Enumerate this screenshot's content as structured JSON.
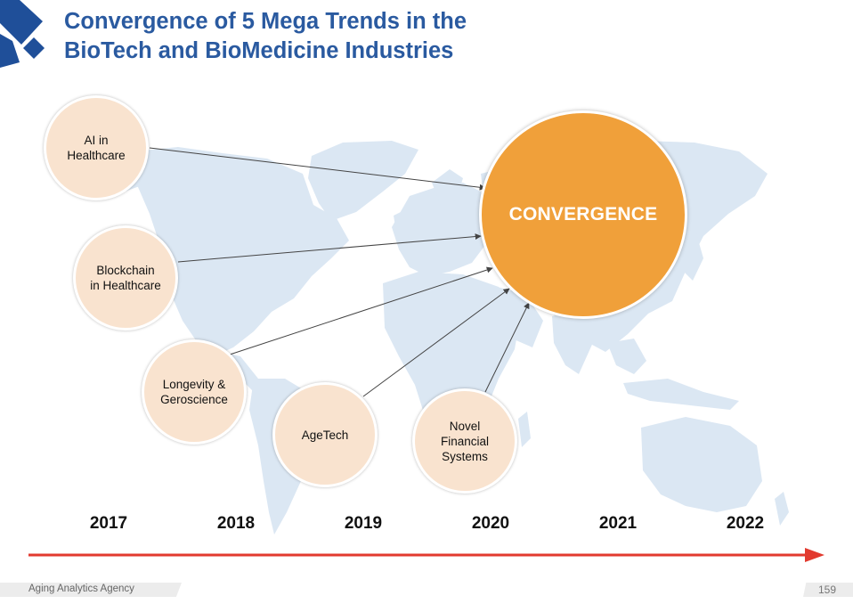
{
  "title": {
    "line1": "Convergence of 5 Mega Trends in the",
    "line2": "BioTech and BioMedicine Industries"
  },
  "trends": [
    {
      "label": "AI in\nHealthcare"
    },
    {
      "label": "Blockchain\nin Healthcare"
    },
    {
      "label": "Longevity &\nGeroscience"
    },
    {
      "label": "AgeTech"
    },
    {
      "label": "Novel\nFinancial\nSystems"
    }
  ],
  "convergence_label": "CONVERGENCE",
  "timeline": {
    "years": [
      "2017",
      "2018",
      "2019",
      "2020",
      "2021",
      "2022"
    ]
  },
  "footer": {
    "company": "Aging Analytics Agency",
    "page_number": "159"
  },
  "colors": {
    "title": "#2a5aa0",
    "logo": "#1f4f99",
    "trend_fill": "#f9e3cf",
    "convergence_fill": "#f0a03a",
    "map": "#dbe7f3",
    "timeline_arrow": "#e23a2f"
  }
}
